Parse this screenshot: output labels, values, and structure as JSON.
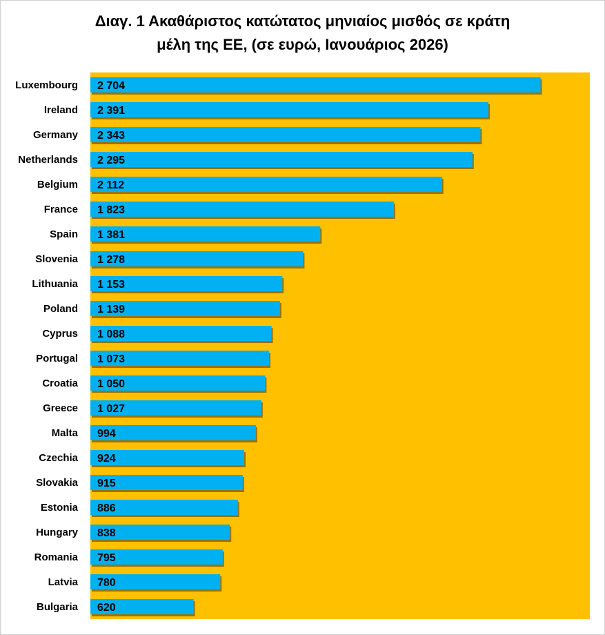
{
  "chart_data": {
    "type": "bar",
    "orientation": "horizontal",
    "title_line1": "Διαγ. 1   Ακαθάριστος κατώτατος μηνιαίος μισθός σε κράτη",
    "title_line2": "μέλη της ΕΕ, (σε ευρώ, Ιανουάριος 2026)",
    "categories": [
      "Luxembourg",
      "Ireland",
      "Germany",
      "Netherlands",
      "Belgium",
      "France",
      "Spain",
      "Slovenia",
      "Lithuania",
      "Poland",
      "Cyprus",
      "Portugal",
      "Croatia",
      "Greece",
      "Malta",
      "Czechia",
      "Slovakia",
      "Estonia",
      "Hungary",
      "Romania",
      "Latvia",
      "Bulgaria"
    ],
    "values": [
      2704,
      2391,
      2343,
      2295,
      2112,
      1823,
      1381,
      1278,
      1153,
      1139,
      1088,
      1073,
      1050,
      1027,
      994,
      924,
      915,
      886,
      838,
      795,
      780,
      620
    ],
    "labels": [
      "2 704",
      "2 391",
      "2 343",
      "2 295",
      "2 112",
      "1 823",
      "1 381",
      "1 278",
      "1 153",
      "1 139",
      "1 088",
      "1 073",
      "1 050",
      "1 027",
      "994",
      "924",
      "915",
      "886",
      "838",
      "795",
      "780",
      "620"
    ],
    "xlim": [
      0,
      3000
    ],
    "grid": false,
    "legend": "none",
    "colors": {
      "bar": "#00b0f0",
      "plot_bg": "#ffc000",
      "shadow": "#7a5a00"
    }
  }
}
